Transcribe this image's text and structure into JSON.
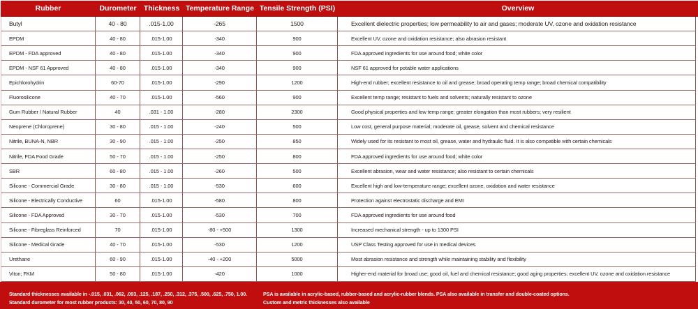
{
  "colors": {
    "accent_red": "#c00d0d",
    "horizontal_line": "#9d6a6a",
    "vertical_line": "#8f5454",
    "body_text": "#1d1d1d",
    "header_text": "#ffffff"
  },
  "table": {
    "columns": [
      {
        "label": "Rubber"
      },
      {
        "label": "Durometer"
      },
      {
        "label": "Thickness"
      },
      {
        "label": "Temperature Range"
      },
      {
        "label": "Tensile Strength (PSI)"
      },
      {
        "label": "Overview"
      }
    ],
    "rows": [
      {
        "rubber": "Butyl",
        "durometer": "40 - 80",
        "thickness": ".015-1.00",
        "temperature": "-265",
        "tensile": "1500",
        "overview": "Excellent dielectric properties; low permeability to air and gases; moderate UV, ozone and oxidation resistance"
      },
      {
        "rubber": "EPDM",
        "durometer": "40 - 80",
        "thickness": ".015-1.00",
        "temperature": "-340",
        "tensile": "900",
        "overview": "Excellent UV, ozone and oxidation resistance; also abrasion resistant"
      },
      {
        "rubber": "EPDM - FDA approved",
        "durometer": "40 - 80",
        "thickness": ".015-1.00",
        "temperature": "-340",
        "tensile": "900",
        "overview": "FDA approved ingredients for use around food; white color"
      },
      {
        "rubber": "EPDM - NSF 61 Approved",
        "durometer": "40 - 80",
        "thickness": ".015-1.00",
        "temperature": "-340",
        "tensile": "900",
        "overview": "NSF 61 approved for potable water applications"
      },
      {
        "rubber": "Epichlorohydrin",
        "durometer": "60-70",
        "thickness": ".015-1.00",
        "temperature": "-290",
        "tensile": "1200",
        "overview": "High-end rubber; excellent resistance to oil and grease; broad operating temp range; broad chemical compatibility"
      },
      {
        "rubber": "Fluorosilicone",
        "durometer": "40 - 70",
        "thickness": ".015-1.00",
        "temperature": "-560",
        "tensile": "900",
        "overview": "Excellent temp range; resistant to fuels and solvents; naturally resistant to ozone"
      },
      {
        "rubber": "Gum Rubber / Natural Rubber",
        "durometer": "40",
        "thickness": ".031 - 1.00",
        "temperature": "-280",
        "tensile": "2300",
        "overview": "Good physical properties and low temp range; greater elongation than most rubbers; very resilient"
      },
      {
        "rubber": "Neoprene (Chloroprene)",
        "durometer": "30 - 80",
        "thickness": ".015 - 1.00",
        "temperature": "-240",
        "tensile": "500",
        "overview": "Low cost, general purpose material; moderate oil, grease, solvent and chemical resistance"
      },
      {
        "rubber": "Nitrile, BUNA-N, NBR",
        "durometer": "30 - 90",
        "thickness": ".015 - 1.00",
        "temperature": "-250",
        "tensile": "850",
        "overview": "Widely used for its resistant to most oil, grease, water and hydraulic fluid.  It is also compatible with certain chemicals"
      },
      {
        "rubber": "Nitrile, FDA Food Grade",
        "durometer": "50 - 70",
        "thickness": ".015 - 1.00",
        "temperature": "-250",
        "tensile": "800",
        "overview": "FDA approved ingredients for use around food; white color"
      },
      {
        "rubber": "SBR",
        "durometer": "60 - 80",
        "thickness": ".015 - 1.00",
        "temperature": "-260",
        "tensile": "500",
        "overview": "Excellent abrasion, wear and water resistance; also resistant to certain chemicals"
      },
      {
        "rubber": "Silicone - Commercial Grade",
        "durometer": "30 - 80",
        "thickness": ".015 - 1.00",
        "temperature": "-530",
        "tensile": "600",
        "overview": "Excellent high and low-temperature range; excellent ozone, oxidation and water resistance"
      },
      {
        "rubber": "Silicone - Electrically Conductive",
        "durometer": "60",
        "thickness": ".015-1.00",
        "temperature": "-580",
        "tensile": "800",
        "overview": "Protection against electrostatic discharge and EMI"
      },
      {
        "rubber": "Silicone - FDA Approved",
        "durometer": "30 - 70",
        "thickness": ".015-1.00",
        "temperature": "-530",
        "tensile": "700",
        "overview": "FDA approved ingredients for use around food"
      },
      {
        "rubber": "Silicone - Fibreglass Reinforced",
        "durometer": "70",
        "thickness": ".015-1.00",
        "temperature": "-80 - +500",
        "tensile": "1300",
        "overview": "Increased mechanical strength - up to 1300 PSI"
      },
      {
        "rubber": "Silicone - Medical Grade",
        "durometer": "40 - 70",
        "thickness": ".015-1.00",
        "temperature": "-530",
        "tensile": "1200",
        "overview": "USP Class Testing approved for use in medical devices"
      },
      {
        "rubber": "Urethane",
        "durometer": "60 - 90",
        "thickness": ".015-1.00",
        "temperature": "-40 - +200",
        "tensile": "5000",
        "overview": "Most abrasion resistance and strength while maintaining stability and flexibility"
      },
      {
        "rubber": "Viton; FKM",
        "durometer": "50 - 80",
        "thickness": ".015-1.00",
        "temperature": "-420",
        "tensile": "1000",
        "overview": "Higher-end material for broad use; good oil, fuel and chemical resistance; good aging properties; excellent UV, ozone and oxidation resistance"
      }
    ]
  },
  "footer": {
    "left_line1": "Standard thicknesses available in -.015, .031, .062, .093, .125, .187, .250, .312, .375, .500, .625, .750, 1.00.",
    "left_line2": "Standard durometer for most rubber products: 30, 40, 50, 60, 70, 80, 90",
    "right_line1": "PSA is available in acrylic-based, rubber-based and acrylic-rubber blends. PSA also available in transfer and double-coated options.",
    "right_line2": "Custom and metric thicknesses also available"
  }
}
